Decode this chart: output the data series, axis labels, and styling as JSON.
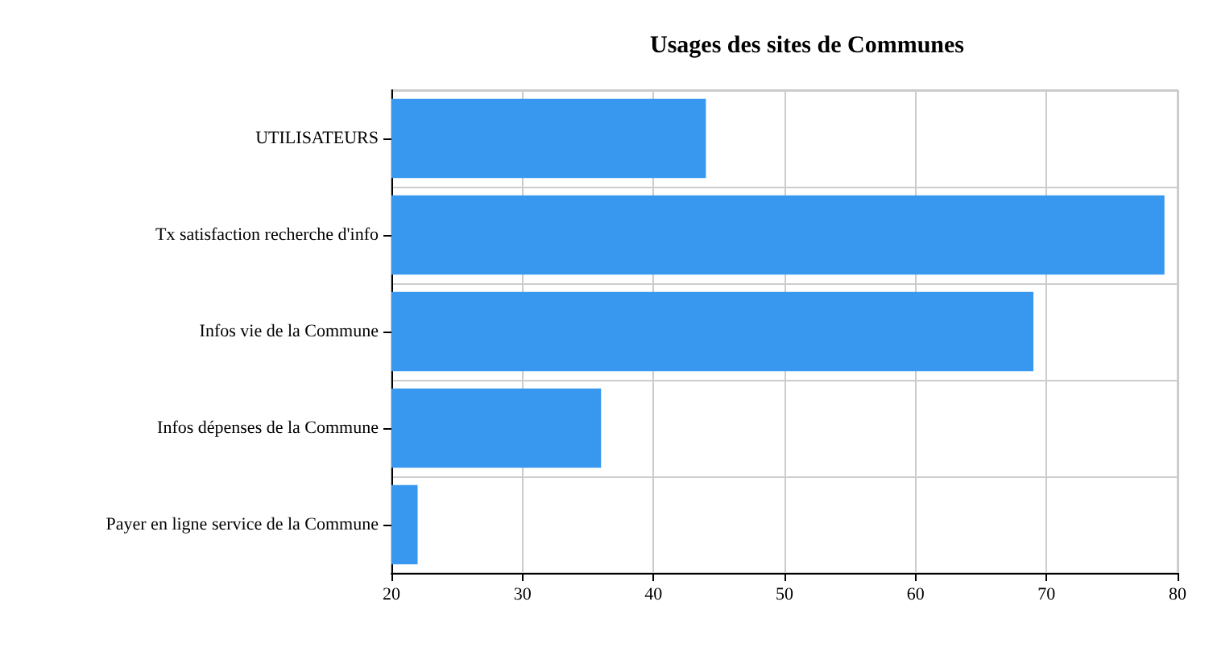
{
  "chart_data": {
    "type": "bar",
    "orientation": "horizontal",
    "title": "Usages des sites de Communes",
    "categories": [
      "UTILISATEURS",
      "Tx satisfaction recherche d'info",
      "Infos vie de la Commune",
      "Infos dépenses de la Commune",
      "Payer en ligne service de la Commune"
    ],
    "values": [
      44,
      79,
      69,
      36,
      22
    ],
    "color": "#3897ee",
    "xlim": [
      20,
      80
    ],
    "xticks": [
      20,
      30,
      40,
      50,
      60,
      70,
      80
    ],
    "grid": true
  }
}
